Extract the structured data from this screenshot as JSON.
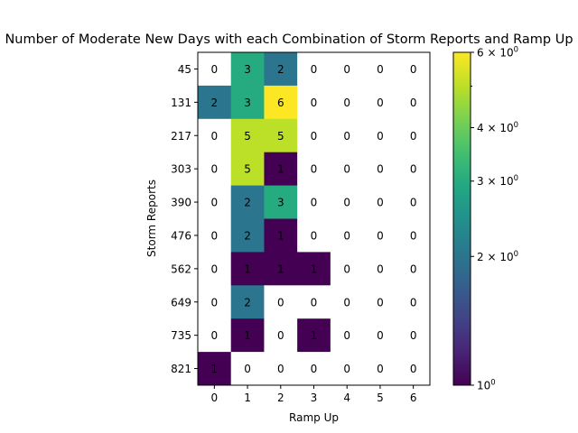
{
  "chart_data": {
    "type": "heatmap",
    "title": "Number of Moderate New Days with each Combination of Storm Reports and Ramp Up",
    "xlabel": "Ramp Up",
    "ylabel": "Storm Reports",
    "x_categories": [
      "0",
      "1",
      "2",
      "3",
      "4",
      "5",
      "6"
    ],
    "y_categories": [
      "45",
      "131",
      "217",
      "303",
      "390",
      "476",
      "562",
      "649",
      "735",
      "821"
    ],
    "values": [
      [
        0,
        3,
        2,
        0,
        0,
        0,
        0
      ],
      [
        2,
        3,
        6,
        0,
        0,
        0,
        0
      ],
      [
        0,
        5,
        5,
        0,
        0,
        0,
        0
      ],
      [
        0,
        5,
        1,
        0,
        0,
        0,
        0
      ],
      [
        0,
        2,
        3,
        0,
        0,
        0,
        0
      ],
      [
        0,
        2,
        1,
        0,
        0,
        0,
        0
      ],
      [
        0,
        1,
        1,
        1,
        0,
        0,
        0
      ],
      [
        0,
        2,
        0,
        0,
        0,
        0,
        0
      ],
      [
        0,
        1,
        0,
        1,
        0,
        0,
        0
      ],
      [
        1,
        0,
        0,
        0,
        0,
        0,
        0
      ]
    ],
    "colorbar": {
      "scale": "log",
      "min": 1,
      "max": 6,
      "colormap": "viridis",
      "ticks": [
        {
          "value": 1,
          "base": "10",
          "exp": "0"
        },
        {
          "value": 2,
          "base": "2 × 10",
          "exp": "0"
        },
        {
          "value": 3,
          "base": "3 × 10",
          "exp": "0"
        },
        {
          "value": 4,
          "base": "4 × 10",
          "exp": "0"
        },
        {
          "value": 6,
          "base": "6 × 10",
          "exp": "0"
        }
      ],
      "minor_ticks": [
        5
      ]
    },
    "zero_color": "#ffffff"
  }
}
